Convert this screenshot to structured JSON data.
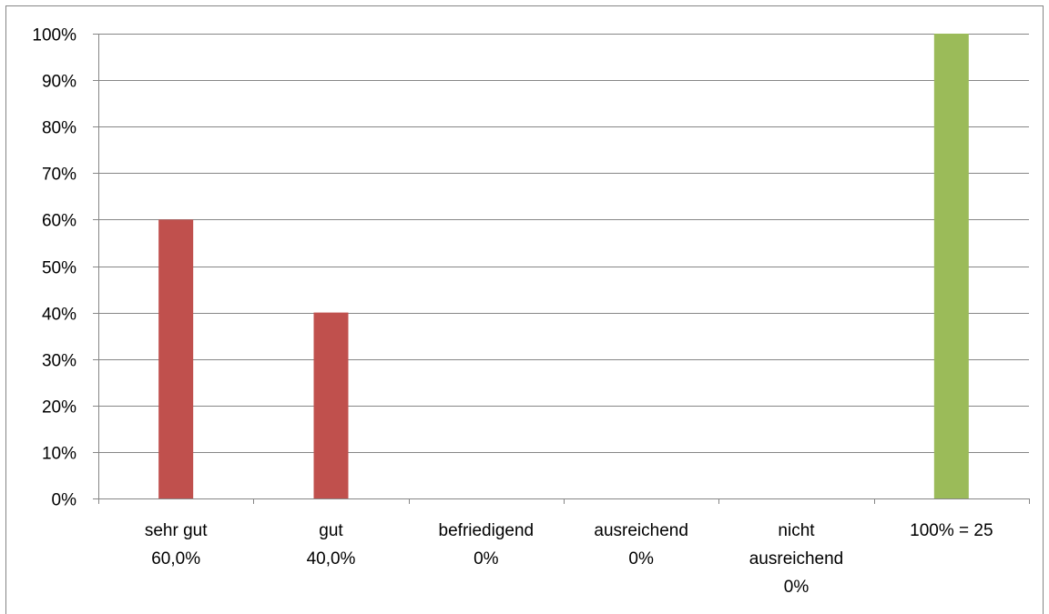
{
  "chart_data": {
    "type": "bar",
    "categories": [
      [
        "sehr gut",
        "60,0%"
      ],
      [
        "gut",
        "40,0%"
      ],
      [
        "befriedigend",
        "0%"
      ],
      [
        "ausreichend",
        "0%"
      ],
      [
        "nicht",
        "ausreichend",
        "0%"
      ],
      [
        "100% = 25"
      ]
    ],
    "values": [
      60,
      40,
      0,
      0,
      0,
      100
    ],
    "bar_colors": [
      "#C0504D",
      "#C0504D",
      "#C0504D",
      "#C0504D",
      "#C0504D",
      "#9BBB59"
    ],
    "ylim": [
      0,
      100
    ],
    "yticks": [
      0,
      10,
      20,
      30,
      40,
      50,
      60,
      70,
      80,
      90,
      100
    ],
    "ytick_labels": [
      "0%",
      "10%",
      "20%",
      "30%",
      "40%",
      "50%",
      "60%",
      "70%",
      "80%",
      "90%",
      "100%"
    ],
    "grid": true,
    "gridline_color": "#868686",
    "axis_color": "#868686",
    "legend": "none",
    "title": "",
    "xlabel": "",
    "ylabel": ""
  }
}
